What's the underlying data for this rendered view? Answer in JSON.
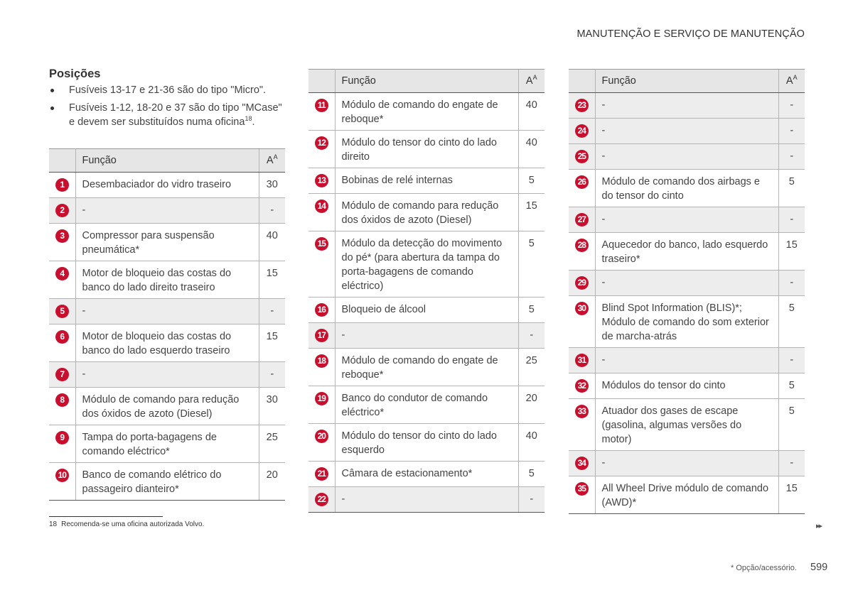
{
  "header": {
    "title": "MANUTENÇÃO E SERVIÇO DE MANUTENÇÃO"
  },
  "section": {
    "title": "Posições",
    "bullets": [
      {
        "text": "Fusíveis 13-17 e 21-36 são do tipo \"Micro\"."
      },
      {
        "text": "Fusíveis 1-12, 18-20 e 37 são do tipo \"MCase\" e devem ser substituídos numa oficina",
        "sup": "18",
        "after": "."
      }
    ]
  },
  "tables": [
    {
      "header": {
        "function": "Função",
        "amp": "A",
        "amp_sup": "A"
      },
      "rows": [
        [
          "1",
          "Desembaciador do vidro traseiro",
          "30"
        ],
        [
          "2",
          "-",
          "-"
        ],
        [
          "3",
          "Compressor para suspensão pneumática*",
          "40"
        ],
        [
          "4",
          "Motor de bloqueio das costas do banco do lado direito traseiro",
          "15"
        ],
        [
          "5",
          "-",
          "-"
        ],
        [
          "6",
          "Motor de bloqueio das costas do banco do lado esquerdo traseiro",
          "15"
        ],
        [
          "7",
          "-",
          "-"
        ],
        [
          "8",
          "Módulo de comando para redução dos óxidos de azoto (Diesel)",
          "30"
        ],
        [
          "9",
          "Tampa do porta-bagagens de comando eléctrico*",
          "25"
        ],
        [
          "10",
          "Banco de comando elétrico do passageiro dianteiro*",
          "20"
        ]
      ]
    },
    {
      "header": {
        "function": "Função",
        "amp": "A",
        "amp_sup": "A"
      },
      "rows": [
        [
          "11",
          "Módulo de comando do engate de reboque*",
          "40"
        ],
        [
          "12",
          "Módulo do tensor do cinto do lado direito",
          "40"
        ],
        [
          "13",
          "Bobinas de relé internas",
          "5"
        ],
        [
          "14",
          "Módulo de comando para redução dos óxidos de azoto (Diesel)",
          "15"
        ],
        [
          "15",
          "Módulo da detecção do movimento do pé* (para abertura da tampa do porta-bagagens de comando eléctrico)",
          "5"
        ],
        [
          "16",
          "Bloqueio de álcool",
          "5"
        ],
        [
          "17",
          "-",
          "-"
        ],
        [
          "18",
          "Módulo de comando do engate de reboque*",
          "25"
        ],
        [
          "19",
          "Banco do condutor de comando eléctrico*",
          "20"
        ],
        [
          "20",
          "Módulo do tensor do cinto do lado esquerdo",
          "40"
        ],
        [
          "21",
          "Câmara de estacionamento*",
          "5"
        ],
        [
          "22",
          "-",
          "-"
        ]
      ]
    },
    {
      "header": {
        "function": "Função",
        "amp": "A",
        "amp_sup": "A"
      },
      "rows": [
        [
          "23",
          "-",
          "-"
        ],
        [
          "24",
          "-",
          "-"
        ],
        [
          "25",
          "-",
          "-"
        ],
        [
          "26",
          "Módulo de comando dos airbags e do tensor do cinto",
          "5"
        ],
        [
          "27",
          "-",
          "-"
        ],
        [
          "28",
          "Aquecedor do banco, lado esquerdo traseiro*",
          "15"
        ],
        [
          "29",
          "-",
          "-"
        ],
        [
          "30",
          "Blind Spot Information (BLIS)*; Módulo de comando do som exterior de marcha-atrás",
          "5"
        ],
        [
          "31",
          "-",
          "-"
        ],
        [
          "32",
          "Módulos do tensor do cinto",
          "5"
        ],
        [
          "33",
          "Atuador dos gases de escape (gasolina, algumas versões do motor)",
          "5"
        ],
        [
          "34",
          "-",
          "-"
        ],
        [
          "35",
          "All Wheel Drive módulo de comando (AWD)*",
          "15"
        ]
      ]
    }
  ],
  "footnote": {
    "num": "18",
    "text": "Recomenda-se uma oficina autorizada Volvo."
  },
  "footer": {
    "note": "* Opção/acessório.",
    "page": "599"
  }
}
